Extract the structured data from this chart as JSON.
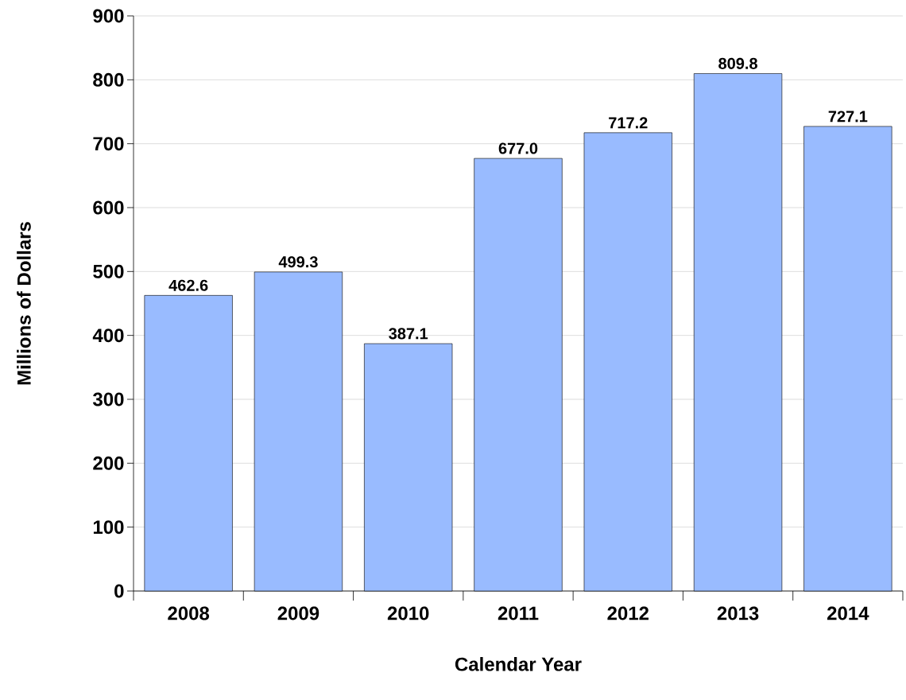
{
  "chart_data": {
    "type": "bar",
    "xlabel": "Calendar Year",
    "ylabel": "Millions of Dollars",
    "categories": [
      "2008",
      "2009",
      "2010",
      "2011",
      "2012",
      "2013",
      "2014"
    ],
    "values": [
      462.6,
      499.3,
      387.1,
      677.0,
      717.2,
      809.8,
      727.1
    ],
    "value_labels": [
      "462.6",
      "499.3",
      "387.1",
      "677.0",
      "717.2",
      "809.8",
      "727.1"
    ],
    "color": "#99bbff",
    "ylim": [
      0,
      900
    ],
    "yticks": [
      0,
      100,
      200,
      300,
      400,
      500,
      600,
      700,
      800,
      900
    ],
    "grid": "y"
  }
}
